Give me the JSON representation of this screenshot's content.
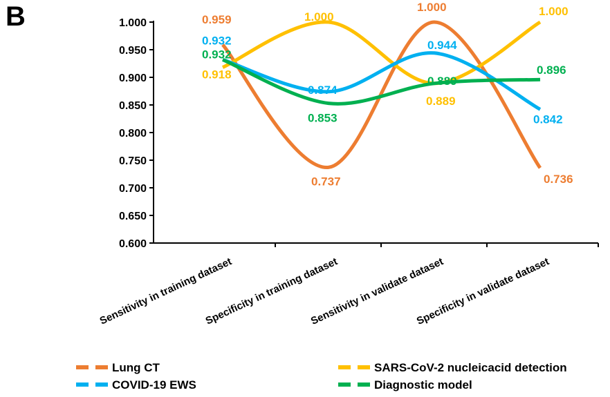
{
  "panel_label": "B",
  "chart_data": {
    "type": "line",
    "categories": [
      "Sensitivity in training dataset",
      "Specificity in training dataset",
      "Sensitivity in validate dataset",
      "Specificity in validate dataset"
    ],
    "ylim": [
      0.6,
      1.0
    ],
    "yticks": [
      "0.600",
      "0.650",
      "0.700",
      "0.750",
      "0.800",
      "0.850",
      "0.900",
      "0.950",
      "1.000"
    ],
    "grid": false,
    "legend_position": "bottom",
    "series": [
      {
        "name": "Lung CT",
        "color": "#ED7D31",
        "values": [
          0.959,
          0.737,
          1.0,
          0.736
        ],
        "labels": [
          "0.959",
          "0.737",
          "1.000",
          "0.736"
        ]
      },
      {
        "name": "SARS-CoV-2 nucleicacid detection",
        "color": "#FFC000",
        "values": [
          0.918,
          1.0,
          0.889,
          1.0
        ],
        "labels": [
          "0.918",
          "1.000",
          "0.889",
          "1.000"
        ]
      },
      {
        "name": "COVID-19 EWS",
        "color": "#00B0F0",
        "values": [
          0.932,
          0.874,
          0.944,
          0.842
        ],
        "labels": [
          "0.932",
          "0.874",
          "0.944",
          "0.842"
        ]
      },
      {
        "name": "Diagnostic model",
        "color": "#00B050",
        "values": [
          0.932,
          0.853,
          0.889,
          0.896
        ],
        "labels": [
          "0.932",
          "0.853",
          "0.889",
          "0.896"
        ]
      }
    ]
  }
}
